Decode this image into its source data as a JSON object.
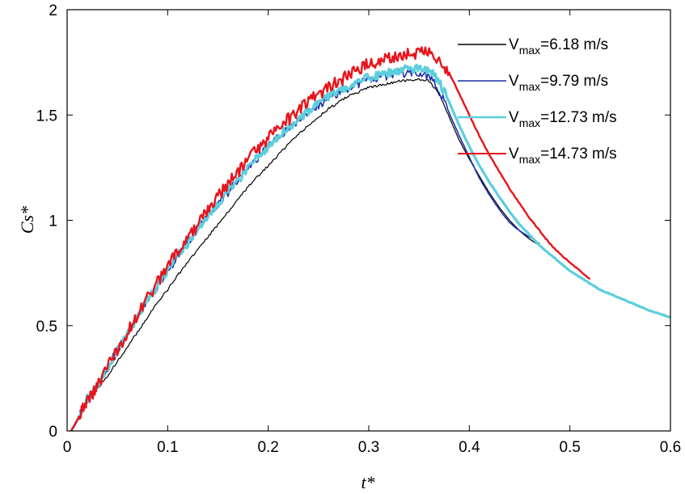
{
  "chart_data": {
    "type": "line",
    "title": "",
    "xlabel": "t*",
    "ylabel": "Cs*",
    "xlim": [
      0,
      0.6
    ],
    "ylim": [
      0,
      2
    ],
    "xticks": [
      0,
      0.1,
      0.2,
      0.3,
      0.4,
      0.5,
      0.6
    ],
    "xtick_labels": [
      "0",
      "0.1",
      "0.2",
      "0.3",
      "0.4",
      "0.5",
      "0.6"
    ],
    "yticks": [
      0,
      0.5,
      1,
      1.5,
      2
    ],
    "ytick_labels": [
      "0",
      "0.5",
      "1",
      "1.5",
      "2"
    ],
    "grid": false,
    "legend_position": "top-right",
    "series": [
      {
        "name": "Vmax=6.18 m/s",
        "legend_main": "V",
        "legend_sub": "max",
        "legend_rest": "=6.18 m/s",
        "color": "#000000",
        "noise": 0.006,
        "stroke": 1.2,
        "x": [
          0.004,
          0.01,
          0.015,
          0.02,
          0.025,
          0.03,
          0.04,
          0.05,
          0.06,
          0.07,
          0.08,
          0.09,
          0.1,
          0.11,
          0.12,
          0.13,
          0.14,
          0.15,
          0.16,
          0.17,
          0.18,
          0.19,
          0.2,
          0.21,
          0.22,
          0.23,
          0.24,
          0.25,
          0.26,
          0.27,
          0.28,
          0.29,
          0.3,
          0.31,
          0.32,
          0.33,
          0.34,
          0.35,
          0.36,
          0.37,
          0.38,
          0.39,
          0.4,
          0.41,
          0.42,
          0.43,
          0.44,
          0.45,
          0.46,
          0.47
        ],
        "y": [
          0.0,
          0.05,
          0.1,
          0.15,
          0.17,
          0.2,
          0.26,
          0.33,
          0.4,
          0.47,
          0.54,
          0.61,
          0.67,
          0.74,
          0.8,
          0.86,
          0.92,
          0.98,
          1.04,
          1.1,
          1.16,
          1.21,
          1.26,
          1.31,
          1.36,
          1.41,
          1.45,
          1.49,
          1.53,
          1.56,
          1.59,
          1.61,
          1.63,
          1.64,
          1.65,
          1.66,
          1.665,
          1.67,
          1.66,
          1.6,
          1.49,
          1.38,
          1.29,
          1.21,
          1.13,
          1.06,
          1.0,
          0.95,
          0.91,
          0.88
        ]
      },
      {
        "name": "Vmax=9.79 m/s",
        "legend_main": "V",
        "legend_sub": "max",
        "legend_rest": "=9.79 m/s",
        "color": "#1c2fa8",
        "noise": 0.022,
        "stroke": 1.6,
        "x": [
          0.004,
          0.01,
          0.015,
          0.02,
          0.025,
          0.03,
          0.04,
          0.05,
          0.06,
          0.07,
          0.08,
          0.09,
          0.1,
          0.11,
          0.12,
          0.13,
          0.14,
          0.15,
          0.16,
          0.17,
          0.18,
          0.19,
          0.2,
          0.21,
          0.22,
          0.23,
          0.24,
          0.25,
          0.26,
          0.27,
          0.28,
          0.29,
          0.3,
          0.31,
          0.32,
          0.33,
          0.34,
          0.35,
          0.36,
          0.37,
          0.38,
          0.39,
          0.4,
          0.41,
          0.42,
          0.43,
          0.44,
          0.45,
          0.46,
          0.47
        ],
        "y": [
          0.0,
          0.05,
          0.1,
          0.15,
          0.17,
          0.22,
          0.3,
          0.38,
          0.47,
          0.55,
          0.62,
          0.69,
          0.76,
          0.83,
          0.9,
          0.96,
          1.02,
          1.08,
          1.13,
          1.19,
          1.25,
          1.3,
          1.35,
          1.39,
          1.43,
          1.47,
          1.51,
          1.55,
          1.58,
          1.61,
          1.63,
          1.65,
          1.67,
          1.68,
          1.69,
          1.7,
          1.7,
          1.7,
          1.68,
          1.62,
          1.51,
          1.4,
          1.3,
          1.2,
          1.12,
          1.05,
          0.99,
          0.95,
          0.92,
          0.89
        ]
      },
      {
        "name": "Vmax=12.73 m/s",
        "legend_main": "V",
        "legend_sub": "max",
        "legend_rest": "=12.73 m/s",
        "color": "#5ccfdc",
        "noise": 0.02,
        "stroke": 3.2,
        "x": [
          0.004,
          0.01,
          0.015,
          0.02,
          0.025,
          0.03,
          0.04,
          0.05,
          0.06,
          0.07,
          0.08,
          0.09,
          0.1,
          0.11,
          0.12,
          0.13,
          0.14,
          0.15,
          0.16,
          0.17,
          0.18,
          0.19,
          0.2,
          0.21,
          0.22,
          0.23,
          0.24,
          0.25,
          0.26,
          0.27,
          0.28,
          0.29,
          0.3,
          0.31,
          0.32,
          0.33,
          0.34,
          0.35,
          0.36,
          0.37,
          0.38,
          0.39,
          0.4,
          0.41,
          0.42,
          0.43,
          0.44,
          0.45,
          0.46,
          0.47,
          0.48,
          0.49,
          0.5,
          0.51,
          0.52,
          0.53,
          0.54,
          0.55,
          0.56,
          0.57,
          0.58,
          0.59,
          0.6
        ],
        "y": [
          0.0,
          0.05,
          0.1,
          0.15,
          0.17,
          0.22,
          0.3,
          0.38,
          0.46,
          0.54,
          0.62,
          0.69,
          0.76,
          0.83,
          0.89,
          0.96,
          1.02,
          1.08,
          1.14,
          1.19,
          1.25,
          1.3,
          1.35,
          1.4,
          1.44,
          1.48,
          1.52,
          1.56,
          1.59,
          1.61,
          1.64,
          1.66,
          1.68,
          1.69,
          1.7,
          1.71,
          1.72,
          1.72,
          1.71,
          1.66,
          1.56,
          1.45,
          1.35,
          1.26,
          1.18,
          1.11,
          1.04,
          0.98,
          0.93,
          0.88,
          0.84,
          0.8,
          0.76,
          0.73,
          0.7,
          0.67,
          0.65,
          0.63,
          0.61,
          0.59,
          0.57,
          0.555,
          0.54
        ]
      },
      {
        "name": "Vmax=14.73 m/s",
        "legend_main": "V",
        "legend_sub": "max",
        "legend_rest": "=14.73 m/s",
        "color": "#e8141c",
        "noise": 0.03,
        "stroke": 2.4,
        "x": [
          0.004,
          0.01,
          0.015,
          0.02,
          0.025,
          0.03,
          0.04,
          0.05,
          0.06,
          0.07,
          0.08,
          0.09,
          0.1,
          0.11,
          0.12,
          0.13,
          0.14,
          0.15,
          0.16,
          0.17,
          0.18,
          0.19,
          0.2,
          0.21,
          0.22,
          0.23,
          0.24,
          0.25,
          0.26,
          0.27,
          0.28,
          0.29,
          0.3,
          0.31,
          0.32,
          0.33,
          0.34,
          0.35,
          0.36,
          0.37,
          0.38,
          0.39,
          0.4,
          0.41,
          0.42,
          0.43,
          0.44,
          0.45,
          0.46,
          0.47,
          0.48,
          0.49,
          0.5,
          0.51,
          0.52
        ],
        "y": [
          0.0,
          0.05,
          0.1,
          0.15,
          0.17,
          0.21,
          0.3,
          0.38,
          0.47,
          0.55,
          0.63,
          0.71,
          0.78,
          0.85,
          0.92,
          0.98,
          1.05,
          1.11,
          1.17,
          1.23,
          1.29,
          1.34,
          1.39,
          1.44,
          1.48,
          1.52,
          1.56,
          1.6,
          1.63,
          1.66,
          1.69,
          1.72,
          1.74,
          1.76,
          1.77,
          1.78,
          1.79,
          1.8,
          1.79,
          1.77,
          1.7,
          1.6,
          1.5,
          1.4,
          1.31,
          1.23,
          1.15,
          1.08,
          1.01,
          0.95,
          0.89,
          0.84,
          0.8,
          0.76,
          0.72
        ]
      }
    ]
  }
}
